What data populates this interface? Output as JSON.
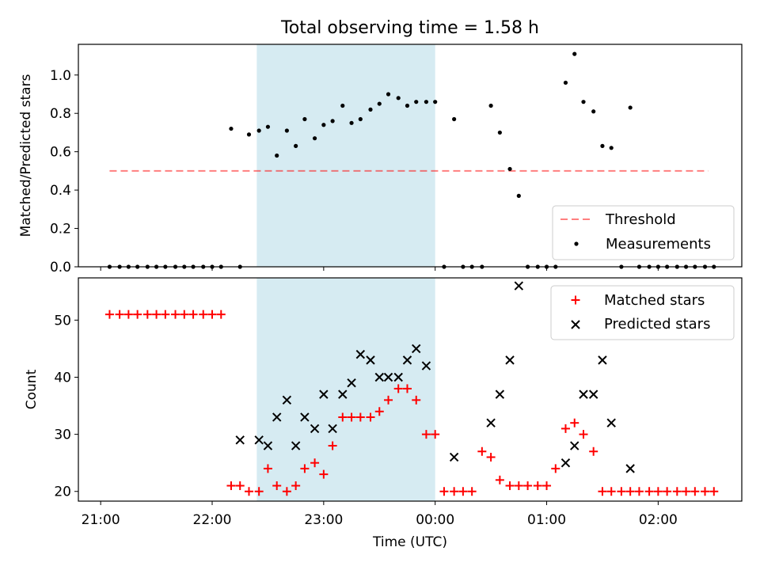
{
  "figure_title": "Total observing time = 1.58 h",
  "colors": {
    "highlight": "#add8e6",
    "threshold": "#ff0000",
    "measurement": "#000000",
    "matched": "#ff0000",
    "predicted": "#000000"
  },
  "chart_data": [
    {
      "type": "scatter",
      "title": "Total observing time = 1.58 h",
      "xlabel": "",
      "ylabel": "Matched/Predicted stars",
      "xlim": [
        20.8,
        26.75
      ],
      "ylim": [
        0,
        1.16
      ],
      "yticks": [
        0.0,
        0.2,
        0.4,
        0.6,
        0.8,
        1.0
      ],
      "ytick_labels": [
        "0.0",
        "0.2",
        "0.4",
        "0.6",
        "0.8",
        "1.0"
      ],
      "xticks": [
        21,
        22,
        23,
        24,
        25,
        26
      ],
      "show_xtick_labels": false,
      "highlight_span": [
        22.4,
        24.0
      ],
      "threshold": {
        "name": "Threshold",
        "y": 0.5,
        "x_start": 21.08,
        "x_end": 26.45
      },
      "legend": {
        "position": "lower right",
        "entries": [
          "Threshold",
          "Measurements"
        ]
      },
      "series": [
        {
          "name": "Measurements",
          "x": [
            21.08,
            21.17,
            21.25,
            21.33,
            21.42,
            21.5,
            21.58,
            21.67,
            21.75,
            21.83,
            21.92,
            22.0,
            22.08,
            22.17,
            22.25,
            22.33,
            22.42,
            22.5,
            22.58,
            22.67,
            22.75,
            22.83,
            22.92,
            23.0,
            23.08,
            23.17,
            23.25,
            23.33,
            23.42,
            23.5,
            23.58,
            23.67,
            23.75,
            23.83,
            23.92,
            24.0,
            24.08,
            24.17,
            24.25,
            24.33,
            24.42,
            24.5,
            24.58,
            24.67,
            24.75,
            24.83,
            24.92,
            25.0,
            25.08,
            25.17,
            25.25,
            25.33,
            25.42,
            25.5,
            25.58,
            25.67,
            25.75,
            25.83,
            25.92,
            26.0,
            26.08,
            26.17,
            26.25,
            26.33,
            26.42,
            26.5
          ],
          "y": [
            0,
            0,
            0,
            0,
            0,
            0,
            0,
            0,
            0,
            0,
            0,
            0,
            0,
            0.72,
            0,
            0.69,
            0.71,
            0.73,
            0.58,
            0.71,
            0.63,
            0.77,
            0.67,
            0.74,
            0.76,
            0.84,
            0.75,
            0.77,
            0.82,
            0.85,
            0.9,
            0.88,
            0.84,
            0.86,
            0.86,
            0.86,
            0,
            0.77,
            0,
            0,
            0,
            0.84,
            0.7,
            0.51,
            0.37,
            0,
            0,
            0,
            0,
            0.96,
            1.11,
            0.86,
            0.81,
            0.63,
            0.62,
            0,
            0.83,
            0,
            0,
            0,
            0,
            0,
            0,
            0,
            0,
            0
          ]
        }
      ]
    },
    {
      "type": "scatter",
      "title": "",
      "xlabel": "Time (UTC)",
      "ylabel": "Count",
      "xlim": [
        20.8,
        26.75
      ],
      "ylim": [
        18.3,
        57.4
      ],
      "yticks": [
        20,
        30,
        40,
        50
      ],
      "ytick_labels": [
        "20",
        "30",
        "40",
        "50"
      ],
      "xticks": [
        21,
        22,
        23,
        24,
        25,
        26
      ],
      "xtick_labels": [
        "21:00",
        "22:00",
        "23:00",
        "00:00",
        "01:00",
        "02:00"
      ],
      "highlight_span": [
        22.4,
        24.0
      ],
      "legend": {
        "position": "upper right",
        "entries": [
          "Matched stars",
          "Predicted stars"
        ]
      },
      "series": [
        {
          "name": "Matched stars",
          "marker": "plus",
          "x": [
            21.08,
            21.17,
            21.25,
            21.33,
            21.42,
            21.5,
            21.58,
            21.67,
            21.75,
            21.83,
            21.92,
            22.0,
            22.08,
            22.17,
            22.25,
            22.33,
            22.42,
            22.5,
            22.58,
            22.67,
            22.75,
            22.83,
            22.92,
            23.0,
            23.08,
            23.17,
            23.25,
            23.33,
            23.42,
            23.5,
            23.58,
            23.67,
            23.75,
            23.83,
            23.92,
            24.0,
            24.08,
            24.17,
            24.25,
            24.33,
            24.42,
            24.5,
            24.58,
            24.67,
            24.75,
            24.83,
            24.92,
            25.0,
            25.08,
            25.17,
            25.25,
            25.33,
            25.42,
            25.5,
            25.58,
            25.67,
            25.75,
            25.83,
            25.92,
            26.0,
            26.08,
            26.17,
            26.25,
            26.33,
            26.42,
            26.5
          ],
          "y": [
            51,
            51,
            51,
            51,
            51,
            51,
            51,
            51,
            51,
            51,
            51,
            51,
            51,
            21,
            21,
            20,
            20,
            24,
            21,
            20,
            21,
            24,
            25,
            23,
            28,
            33,
            33,
            33,
            33,
            34,
            36,
            38,
            38,
            36,
            30,
            30,
            20,
            20,
            20,
            20,
            27,
            26,
            22,
            21,
            21,
            21,
            21,
            21,
            24,
            31,
            32,
            30,
            27,
            20,
            20,
            20,
            20,
            20,
            20,
            20,
            20,
            20,
            20,
            20,
            20,
            20
          ]
        },
        {
          "name": "Predicted stars",
          "marker": "x",
          "x": [
            22.25,
            22.42,
            22.5,
            22.58,
            22.67,
            22.75,
            22.83,
            22.92,
            23.0,
            23.08,
            23.17,
            23.25,
            23.33,
            23.42,
            23.5,
            23.58,
            23.67,
            23.75,
            23.83,
            23.92,
            24.17,
            24.5,
            24.58,
            24.67,
            24.75,
            25.17,
            25.25,
            25.33,
            25.42,
            25.5,
            25.58,
            25.75
          ],
          "y": [
            29,
            29,
            28,
            33,
            36,
            28,
            33,
            31,
            37,
            31,
            37,
            39,
            44,
            43,
            40,
            40,
            40,
            43,
            45,
            42,
            26,
            32,
            37,
            43,
            56,
            25,
            28,
            37,
            37,
            43,
            32,
            24
          ]
        }
      ]
    }
  ]
}
